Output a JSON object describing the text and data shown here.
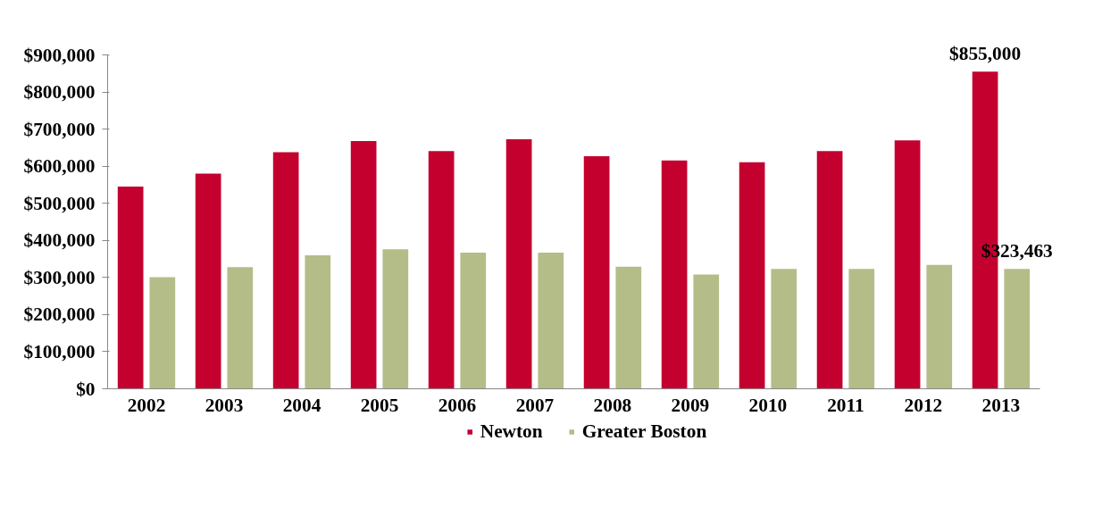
{
  "chart_data": {
    "type": "bar",
    "categories": [
      "2002",
      "2003",
      "2004",
      "2005",
      "2006",
      "2007",
      "2008",
      "2009",
      "2010",
      "2011",
      "2012",
      "2013"
    ],
    "series": [
      {
        "name": "Newton",
        "color": "#c4002f",
        "values": [
          545000,
          580000,
          638000,
          668000,
          641000,
          673000,
          627000,
          616000,
          611000,
          641000,
          670000,
          855000
        ],
        "value_labels": [
          null,
          null,
          null,
          null,
          null,
          null,
          null,
          null,
          null,
          null,
          null,
          "$855,000"
        ]
      },
      {
        "name": "Greater Boston",
        "color": "#b4bd87",
        "values": [
          301000,
          328000,
          360000,
          376000,
          367000,
          367000,
          329000,
          308000,
          323000,
          323000,
          334000,
          323463
        ],
        "value_labels": [
          null,
          null,
          null,
          null,
          null,
          null,
          null,
          null,
          null,
          null,
          null,
          "$323,463"
        ]
      }
    ],
    "ylim": [
      0,
      900000
    ],
    "yticks": [
      {
        "value": 0,
        "label": "$0"
      },
      {
        "value": 100000,
        "label": "$100,000"
      },
      {
        "value": 200000,
        "label": "$200,000"
      },
      {
        "value": 300000,
        "label": "$300,000"
      },
      {
        "value": 400000,
        "label": "$400,000"
      },
      {
        "value": 500000,
        "label": "$500,000"
      },
      {
        "value": 600000,
        "label": "$600,000"
      },
      {
        "value": 700000,
        "label": "$700,000"
      },
      {
        "value": 800000,
        "label": "$800,000"
      },
      {
        "value": 900000,
        "label": "$900,000"
      }
    ],
    "grid": false,
    "legend": "bottom"
  }
}
